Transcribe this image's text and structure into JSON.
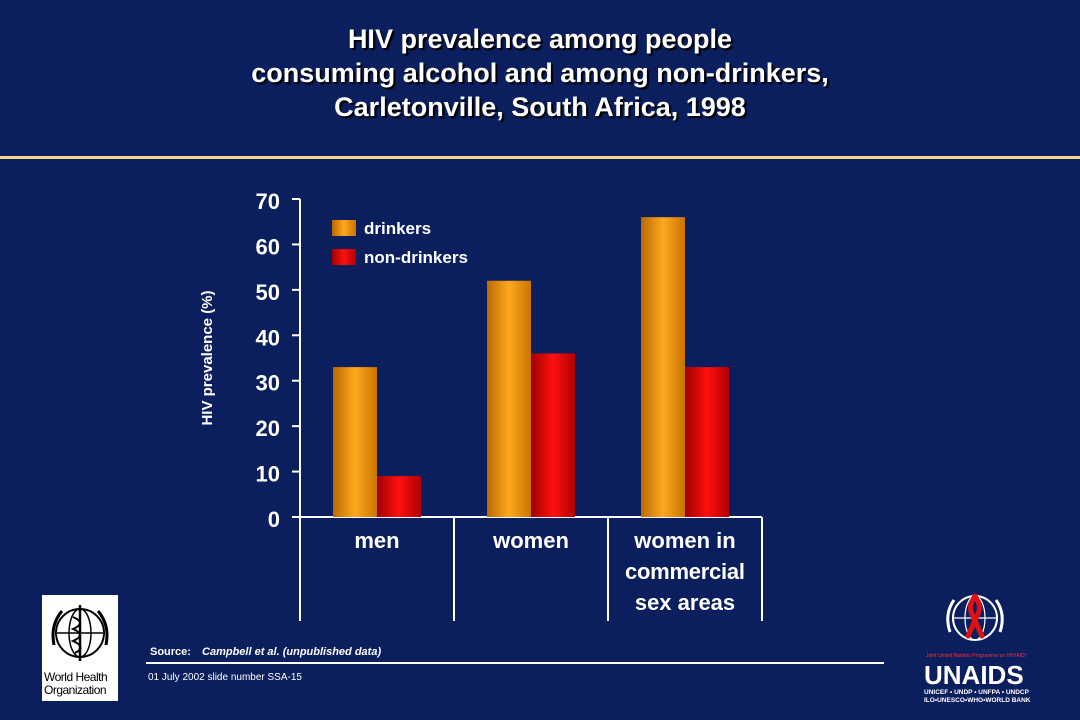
{
  "slide": {
    "title_lines": [
      "HIV prevalence among people",
      "consuming alcohol and among non-drinkers,",
      "Carletonville, South Africa, 1998"
    ],
    "source_label": "Source:",
    "source_text": "Campbell et al. (unpublished data)",
    "slide_meta": "01 July 2002 slide number SSA-15",
    "who_logo_text": [
      "World Health",
      "Organization"
    ],
    "unaids_tagline": "Joint United Nations Programme on HIV/AIDS",
    "unaids_word": "UNAIDS",
    "unaids_cosponsors": [
      "UNICEF • UNDP • UNFPA • UNDCP",
      "ILO•UNESCO•WHO•WORLD BANK"
    ]
  },
  "colors": {
    "background": "#0b1e5e",
    "drinkers": "#f39a10",
    "non_drinkers": "#e01010",
    "rule": "#f0d88a"
  },
  "chart_data": {
    "type": "bar",
    "title": "HIV prevalence among people consuming alcohol and among non-drinkers, Carletonville, South Africa, 1998",
    "ylabel": "HIV prevalence (%)",
    "xlabel": "",
    "ylim": [
      0,
      70
    ],
    "yticks": [
      0,
      10,
      20,
      30,
      40,
      50,
      60,
      70
    ],
    "categories": [
      [
        "men"
      ],
      [
        "women"
      ],
      [
        "women in",
        "commercial",
        "sex areas"
      ]
    ],
    "series": [
      {
        "name": "drinkers",
        "values": [
          33,
          52,
          66
        ]
      },
      {
        "name": "non-drinkers",
        "values": [
          9,
          36,
          33
        ]
      }
    ],
    "legend_position": "top-left",
    "grid": false
  }
}
